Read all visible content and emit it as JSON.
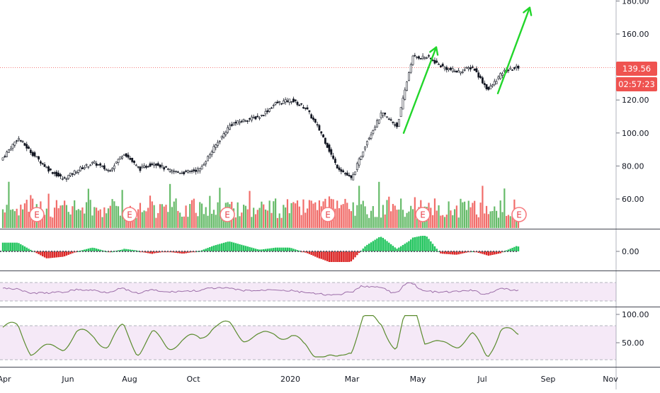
{
  "chart_data": {
    "type": "candlestick",
    "main_price_axis": {
      "ticks": [
        "180.00",
        "160.00",
        "140.00",
        "120.00",
        "100.00",
        "80.00",
        "60.00"
      ],
      "range": [
        50,
        181
      ]
    },
    "last_price_label": "139.56",
    "countdown_label": "02:57:23",
    "x_axis": {
      "labels": [
        "Apr",
        "Jun",
        "Aug",
        "Oct",
        "2020",
        "Mar",
        "May",
        "Jul",
        "Sep",
        "Nov"
      ]
    },
    "earnings_markers": {
      "label": "E",
      "count": 6
    },
    "price_series": {
      "x_labels_ordered": [
        "Apr",
        "Jun",
        "Aug",
        "Oct",
        "2020",
        "Mar",
        "May",
        "Jul"
      ],
      "close_values": [
        85,
        97,
        87,
        78,
        72,
        78,
        82,
        77,
        88,
        78,
        82,
        77,
        76,
        78,
        92,
        105,
        108,
        110,
        118,
        120,
        115,
        100,
        80,
        72,
        95,
        112,
        104,
        146,
        146,
        140,
        137,
        140,
        126,
        137,
        140
      ]
    },
    "volume_histogram": {
      "range": [
        0,
        100
      ]
    },
    "macd": {
      "axis_ticks": [
        "0.00"
      ]
    },
    "rsi_panel": {
      "band": [
        30,
        70
      ]
    },
    "stoch_panel": {
      "axis_ticks": [
        "100.00",
        "50.00"
      ],
      "band": [
        20,
        80
      ]
    },
    "annotations": [
      {
        "type": "arrow",
        "color": "#22d62b",
        "from": [
          100,
          "Apr"
        ],
        "to": [
          152,
          "May"
        ]
      },
      {
        "type": "arrow",
        "color": "#22d62b",
        "from": [
          124,
          "Jul"
        ],
        "to": [
          176,
          "Aug"
        ]
      }
    ],
    "colors": {
      "up": "#26a69a",
      "down": "#ef5350",
      "candles": "#131722",
      "arrow": "#22d62b",
      "rsi_line": "#9c6ea8",
      "stoch_line": "#5b8c2f"
    }
  }
}
